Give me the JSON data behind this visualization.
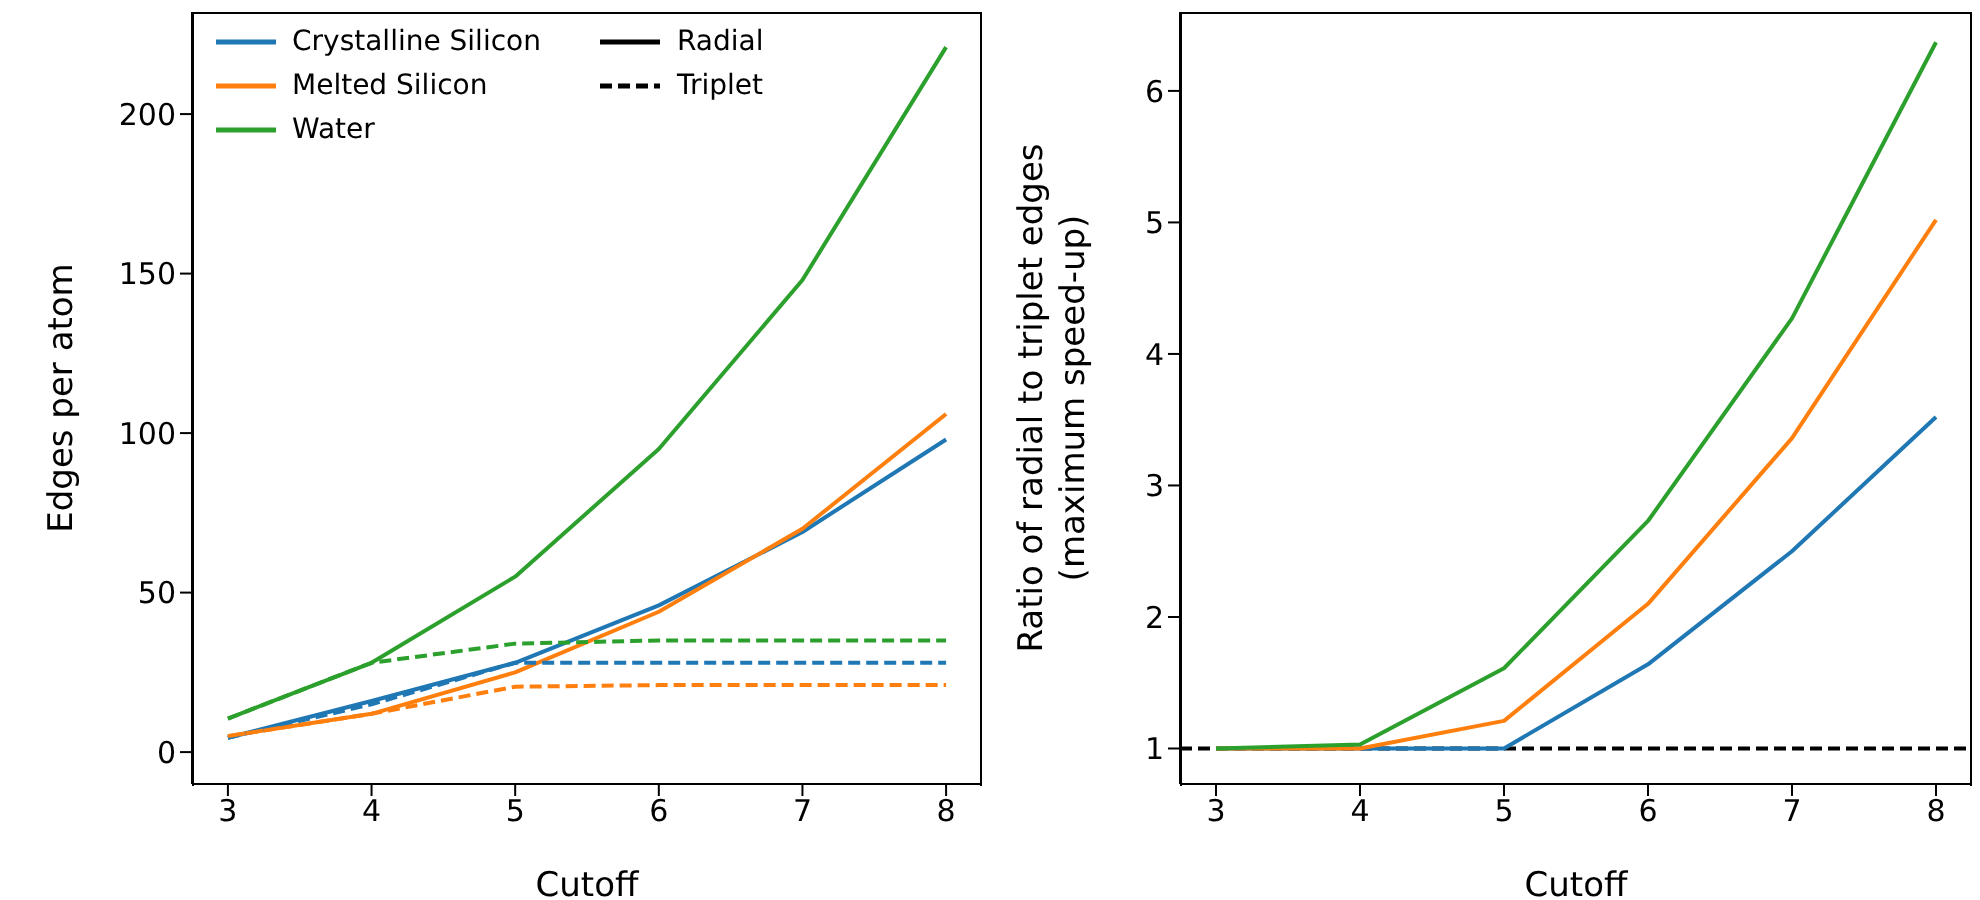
{
  "chart_data": [
    {
      "type": "line",
      "xlabel": "Cutoff",
      "ylabel": "Edges per atom",
      "x": [
        3,
        4,
        5,
        6,
        7,
        8
      ],
      "xlim": [
        2.75,
        8.25
      ],
      "xticks": [
        3,
        4,
        5,
        6,
        7,
        8
      ],
      "ylim": [
        -10,
        232
      ],
      "yticks": [
        0,
        50,
        100,
        150,
        200
      ],
      "legend": "top left",
      "annotations": [
        "Radial",
        "Triplet"
      ],
      "series": [
        {
          "name": "Crystalline Silicon",
          "color": "#1f77b4",
          "line_style": "solid",
          "values": [
            4.5,
            16,
            28,
            46,
            69,
            98
          ]
        },
        {
          "name": "Melted Silicon",
          "color": "#ff7f0e",
          "line_style": "solid",
          "values": [
            5,
            12,
            25,
            44,
            70,
            106
          ]
        },
        {
          "name": "Water",
          "color": "#2ca02c",
          "line_style": "solid",
          "values": [
            10.5,
            28,
            55,
            95,
            148,
            221
          ]
        },
        {
          "color": "#1f77b4",
          "line_style": "dashed",
          "values": [
            4.5,
            15,
            28,
            28,
            28,
            28
          ]
        },
        {
          "color": "#ff7f0e",
          "line_style": "dashed",
          "values": [
            5,
            12,
            20.5,
            21,
            21,
            21
          ]
        },
        {
          "color": "#2ca02c",
          "line_style": "dashed",
          "values": [
            10.5,
            28,
            34,
            35,
            35,
            35
          ]
        }
      ]
    },
    {
      "type": "line",
      "xlabel": "Cutoff",
      "ylabel": "Ratio of radial to triplet edges\n(maximum speed-up)",
      "x": [
        3,
        4,
        5,
        6,
        7,
        8
      ],
      "xlim": [
        2.75,
        8.25
      ],
      "xticks": [
        3,
        4,
        5,
        6,
        7,
        8
      ],
      "ylim": [
        0.73,
        6.6
      ],
      "yticks": [
        1,
        2,
        3,
        4,
        5,
        6
      ],
      "ref_lines": [
        {
          "axis": "y",
          "value": 1,
          "color": "#000000",
          "line_style": "dashed"
        }
      ],
      "series": [
        {
          "color": "#1f77b4",
          "line_style": "solid",
          "values": [
            1,
            1,
            1,
            1.64,
            2.5,
            3.52
          ]
        },
        {
          "color": "#ff7f0e",
          "line_style": "solid",
          "values": [
            1,
            1,
            1.21,
            2.1,
            3.36,
            5.02
          ]
        },
        {
          "color": "#2ca02c",
          "line_style": "solid",
          "values": [
            1,
            1.03,
            1.61,
            2.73,
            4.27,
            6.37
          ]
        }
      ]
    }
  ]
}
